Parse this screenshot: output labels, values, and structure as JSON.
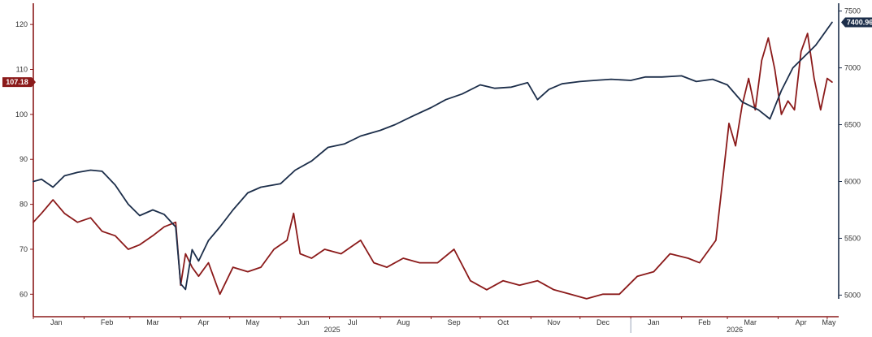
{
  "chart_data": {
    "type": "line",
    "title": "",
    "xlabel": "",
    "colors": {
      "left_axis": "#8b1a1a",
      "right_axis": "#1c2e4a",
      "baseline": "#8b1a1a"
    },
    "x_month_labels": [
      "Jan",
      "Feb",
      "Mar",
      "Apr",
      "May",
      "Jun",
      "Jul",
      "Aug",
      "Sep",
      "Oct",
      "Nov",
      "Dec",
      "Jan",
      "Feb",
      "Mar",
      "Apr",
      "May"
    ],
    "x_year_labels": [
      "2025",
      "2026"
    ],
    "left_axis": {
      "range": [
        55,
        124
      ],
      "ticks": [
        "60",
        "70",
        "80",
        "90",
        "100",
        "110",
        "120"
      ]
    },
    "right_axis": {
      "range": [
        4810,
        7540
      ],
      "ticks": [
        "5000",
        "5500",
        "6000",
        "6500",
        "7000",
        "7500"
      ]
    },
    "series": [
      {
        "axis": "left",
        "color": "#8b1a1a",
        "last_value_label": "107.18",
        "x": [
          "2025-01-01",
          "2025-01-06",
          "2025-01-13",
          "2025-01-20",
          "2025-01-28",
          "2025-02-05",
          "2025-02-12",
          "2025-02-20",
          "2025-02-28",
          "2025-03-07",
          "2025-03-15",
          "2025-03-22",
          "2025-03-29",
          "2025-04-01",
          "2025-04-04",
          "2025-04-08",
          "2025-04-12",
          "2025-04-18",
          "2025-04-25",
          "2025-05-03",
          "2025-05-12",
          "2025-05-20",
          "2025-05-28",
          "2025-06-05",
          "2025-06-09",
          "2025-06-13",
          "2025-06-20",
          "2025-06-28",
          "2025-07-08",
          "2025-07-20",
          "2025-07-28",
          "2025-08-05",
          "2025-08-15",
          "2025-08-25",
          "2025-09-05",
          "2025-09-15",
          "2025-09-25",
          "2025-10-05",
          "2025-10-15",
          "2025-10-25",
          "2025-11-05",
          "2025-11-15",
          "2025-11-25",
          "2025-12-05",
          "2025-12-15",
          "2025-12-25",
          "2026-01-05",
          "2026-01-15",
          "2026-01-25",
          "2026-02-05",
          "2026-02-12",
          "2026-02-18",
          "2026-02-22",
          "2026-02-26",
          "2026-03-02",
          "2026-03-06",
          "2026-03-10",
          "2026-03-14",
          "2026-03-18",
          "2026-03-22",
          "2026-03-26",
          "2026-03-30",
          "2026-04-03",
          "2026-04-07",
          "2026-04-11",
          "2026-04-15",
          "2026-04-19",
          "2026-04-23",
          "2026-04-27",
          "2026-05-01",
          "2026-05-04"
        ],
        "y": [
          76,
          78,
          81,
          78,
          76,
          77,
          74,
          73,
          70,
          71,
          73,
          75,
          76,
          62,
          69,
          66,
          64,
          67,
          60,
          66,
          65,
          66,
          70,
          72,
          78,
          69,
          68,
          70,
          69,
          72,
          67,
          66,
          68,
          67,
          67,
          70,
          63,
          61,
          63,
          62,
          63,
          61,
          60,
          59,
          60,
          60,
          64,
          65,
          69,
          68,
          67,
          70,
          72,
          85,
          98,
          93,
          102,
          108,
          101,
          112,
          117,
          110,
          100,
          103,
          101,
          114,
          118,
          108,
          101,
          108,
          107.18
        ]
      },
      {
        "axis": "right",
        "color": "#1c2e4a",
        "last_value_label": "7400.96",
        "x": [
          "2025-01-01",
          "2025-01-06",
          "2025-01-13",
          "2025-01-20",
          "2025-01-28",
          "2025-02-05",
          "2025-02-12",
          "2025-02-20",
          "2025-02-28",
          "2025-03-07",
          "2025-03-15",
          "2025-03-22",
          "2025-03-29",
          "2025-04-01",
          "2025-04-04",
          "2025-04-08",
          "2025-04-12",
          "2025-04-18",
          "2025-04-25",
          "2025-05-03",
          "2025-05-12",
          "2025-05-20",
          "2025-06-01",
          "2025-06-10",
          "2025-06-20",
          "2025-06-30",
          "2025-07-10",
          "2025-07-20",
          "2025-08-01",
          "2025-08-10",
          "2025-08-20",
          "2025-09-01",
          "2025-09-10",
          "2025-09-20",
          "2025-10-01",
          "2025-10-10",
          "2025-10-20",
          "2025-10-30",
          "2025-11-05",
          "2025-11-12",
          "2025-11-20",
          "2025-12-01",
          "2025-12-10",
          "2025-12-20",
          "2026-01-01",
          "2026-01-10",
          "2026-01-20",
          "2026-02-01",
          "2026-02-10",
          "2026-02-20",
          "2026-03-01",
          "2026-03-10",
          "2026-03-20",
          "2026-03-27",
          "2026-04-03",
          "2026-04-10",
          "2026-04-17",
          "2026-04-24",
          "2026-05-04"
        ],
        "y": [
          6000,
          6020,
          5950,
          6050,
          6080,
          6100,
          6090,
          5970,
          5800,
          5700,
          5750,
          5710,
          5600,
          5100,
          5050,
          5400,
          5300,
          5480,
          5600,
          5750,
          5900,
          5950,
          5980,
          6100,
          6180,
          6300,
          6330,
          6400,
          6450,
          6500,
          6570,
          6650,
          6720,
          6770,
          6850,
          6820,
          6830,
          6870,
          6720,
          6810,
          6860,
          6880,
          6890,
          6900,
          6890,
          6920,
          6920,
          6930,
          6880,
          6900,
          6850,
          6700,
          6630,
          6550,
          6800,
          7000,
          7100,
          7200,
          7400.96
        ]
      }
    ]
  }
}
